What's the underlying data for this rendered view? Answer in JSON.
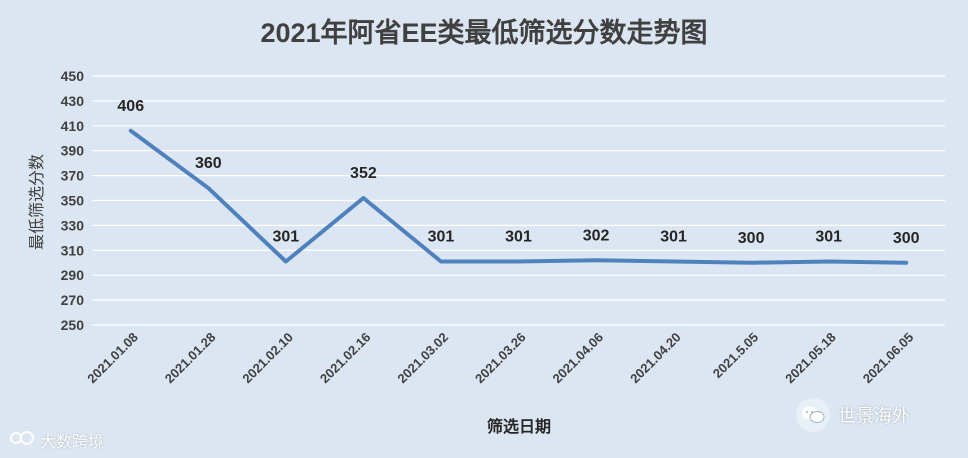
{
  "chart_data": {
    "type": "line",
    "title": "2021年阿省EE类最低筛选分数走势图",
    "xlabel": "筛选日期",
    "ylabel": "最低筛选分数",
    "categories": [
      "2021.01.08",
      "2021.01.28",
      "2021.02.10",
      "2021.02.16",
      "2021.03.02",
      "2021.03.26",
      "2021.04.06",
      "2021.04.20",
      "2021.5.05",
      "2021.05.18",
      "2021.06.05"
    ],
    "series": [
      {
        "values": [
          406,
          360,
          301,
          352,
          301,
          301,
          302,
          301,
          300,
          301,
          300
        ]
      }
    ],
    "ylim": [
      250,
      450
    ],
    "yticks": [
      250,
      270,
      290,
      310,
      330,
      350,
      370,
      390,
      410,
      430,
      450
    ],
    "grid": true,
    "line_color": "#4f81bd",
    "grid_color": "#ffffff",
    "text_color": "#404040",
    "label_color": "#262626"
  },
  "watermarks": {
    "left_text": "大数跨境",
    "right_text": "世景海外",
    "left_icon": "camera-icon",
    "right_icon": "wechat-icon"
  }
}
